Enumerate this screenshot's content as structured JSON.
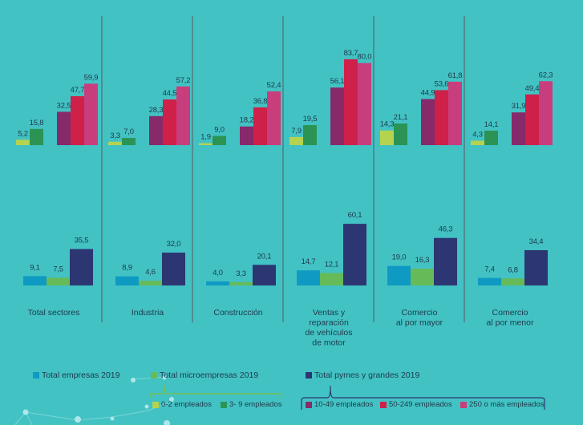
{
  "chart_data": [
    {
      "type": "bar",
      "title": "",
      "panel": "top",
      "categories": [
        "Total sectores",
        "Industria",
        "Construcción",
        "Ventas y reparación de vehículos de motor",
        "Comercio al por mayor",
        "Comercio al por menor"
      ],
      "groups": [
        {
          "name": "Microempresas",
          "series": [
            {
              "name": "0-2 empleados",
              "color": "#b5d34f",
              "values": [
                5.2,
                3.3,
                1.9,
                7.9,
                14.3,
                4.3
              ],
              "labels": [
                "5,2",
                "3,3",
                "1,9",
                "7,9",
                "14,3",
                "4,3"
              ]
            },
            {
              "name": "3- 9 empleados",
              "color": "#2b9455",
              "values": [
                15.8,
                7.0,
                9.0,
                19.5,
                21.1,
                14.1
              ],
              "labels": [
                "15,8",
                "7,0",
                "9,0",
                "19,5",
                "21,1",
                "14,1"
              ]
            }
          ]
        },
        {
          "name": "Pymes y grandes",
          "series": [
            {
              "name": "10-49 empleados",
              "color": "#862a6a",
              "values": [
                32.5,
                28.3,
                18.2,
                56.1,
                44.9,
                31.9
              ],
              "labels": [
                "32,5",
                "28,3",
                "18,2",
                "56,1",
                "44,9",
                "31,9"
              ]
            },
            {
              "name": "50-249 empleados",
              "color": "#cf2049",
              "values": [
                47.7,
                44.5,
                36.8,
                83.7,
                53.6,
                49.4
              ],
              "labels": [
                "47,7",
                "44,5",
                "36,8",
                "83,7",
                "53,6",
                "49,4"
              ]
            },
            {
              "name": "250 o más empleados",
              "color": "#c83e7c",
              "values": [
                59.9,
                57.2,
                52.4,
                80.0,
                61.8,
                62.3
              ],
              "labels": [
                "59,9",
                "57,2",
                "52,4",
                "80,0",
                "61,8",
                "62,3"
              ]
            }
          ]
        }
      ],
      "ylim": [
        0,
        100
      ],
      "grid": false
    },
    {
      "type": "bar",
      "title": "",
      "panel": "bottom",
      "categories": [
        "Total sectores",
        "Industria",
        "Construcción",
        "Ventas y reparación de vehículos de motor",
        "Comercio al por mayor",
        "Comercio al por menor"
      ],
      "series": [
        {
          "name": "Total empresas 2019",
          "color": "#0e9ac2",
          "values": [
            9.1,
            8.9,
            4.0,
            14.7,
            19.0,
            7.4
          ],
          "labels": [
            "9,1",
            "8,9",
            "4,0",
            "14,7",
            "19,0",
            "7,4"
          ]
        },
        {
          "name": "Total microempresas 2019",
          "color": "#66bb58",
          "values": [
            7.5,
            4.6,
            3.3,
            12.1,
            16.3,
            6.8
          ],
          "labels": [
            "7,5",
            "4,6",
            "3,3",
            "12,1",
            "16,3",
            "6,8"
          ]
        },
        {
          "name": "Total pymes y grandes 2019",
          "color": "#2c3672",
          "values": [
            35.5,
            32.0,
            20.1,
            60.1,
            46.3,
            34.4
          ],
          "labels": [
            "35,5",
            "32,0",
            "20,1",
            "60,1",
            "46,3",
            "34,4"
          ]
        }
      ],
      "ylim": [
        0,
        100
      ],
      "grid": false
    }
  ],
  "category_labels": [
    [
      "Total sectores"
    ],
    [
      "Industria"
    ],
    [
      "Construcción"
    ],
    [
      "Ventas y",
      "reparación",
      "de vehículos",
      "de motor"
    ],
    [
      "Comercio",
      "al por mayor"
    ],
    [
      "Comercio",
      "al por menor"
    ]
  ],
  "legend": {
    "totals": [
      {
        "label": "Total empresas 2019",
        "color": "#0e9ac2"
      },
      {
        "label": "Total microempresas 2019",
        "color": "#66bb58"
      },
      {
        "label": "Total pymes y grandes 2019",
        "color": "#2c3672"
      }
    ],
    "micro_breakdown": [
      {
        "label": "0-2 empleados",
        "color": "#b5d34f"
      },
      {
        "label": "3- 9 empleados",
        "color": "#2b9455"
      }
    ],
    "pymes_breakdown": [
      {
        "label": "10-49 empleados",
        "color": "#862a6a"
      },
      {
        "label": "50-249 empleados",
        "color": "#cf2049"
      },
      {
        "label": "250 o más empleados",
        "color": "#c83e7c"
      }
    ]
  },
  "colors": {
    "background": "#43c2c4",
    "divider": "#4f7c80",
    "text": "#1d3a4a",
    "micro_bracket": "#7cbf3a",
    "pymes_bracket": "#2c3672"
  }
}
